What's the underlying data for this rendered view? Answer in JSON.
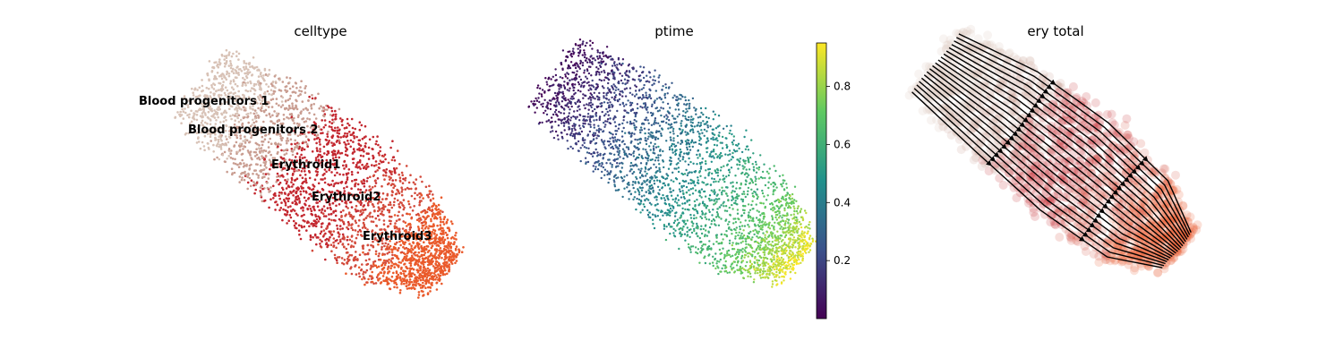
{
  "chart_data": [
    {
      "type": "scatter",
      "title": "celltype",
      "xlabel": "",
      "ylabel": "",
      "categories": [
        {
          "name": "Blood progenitors 1",
          "color": "#d8c2b6",
          "share": 0.17
        },
        {
          "name": "Blood progenitors 2",
          "color": "#c99d91",
          "share": 0.16
        },
        {
          "name": "Erythroid1",
          "color": "#c3272f",
          "share": 0.24
        },
        {
          "name": "Erythroid2",
          "color": "#d34b3c",
          "share": 0.17
        },
        {
          "name": "Erythroid3",
          "color": "#ea5a2b",
          "share": 0.26
        }
      ],
      "labels_on_data": true,
      "legend": "none",
      "grid": false
    },
    {
      "type": "scatter",
      "title": "ptime",
      "xlabel": "",
      "ylabel": "",
      "value_range": [
        0.0,
        0.95
      ],
      "colormap": [
        "#440154",
        "#3b528b",
        "#21918c",
        "#5ec962",
        "#fde725"
      ],
      "colorbar_ticks": [
        "0.2",
        "0.4",
        "0.6",
        "0.8"
      ],
      "colorbar_tick_values": [
        0.2,
        0.4,
        0.6,
        0.8
      ],
      "legend": "colorbar-right",
      "grid": false
    },
    {
      "type": "scatter",
      "title": "ery total",
      "xlabel": "",
      "ylabel": "",
      "overlay": "velocity-streamlines",
      "stream_color": "#000000",
      "legend": "none",
      "grid": false
    }
  ]
}
